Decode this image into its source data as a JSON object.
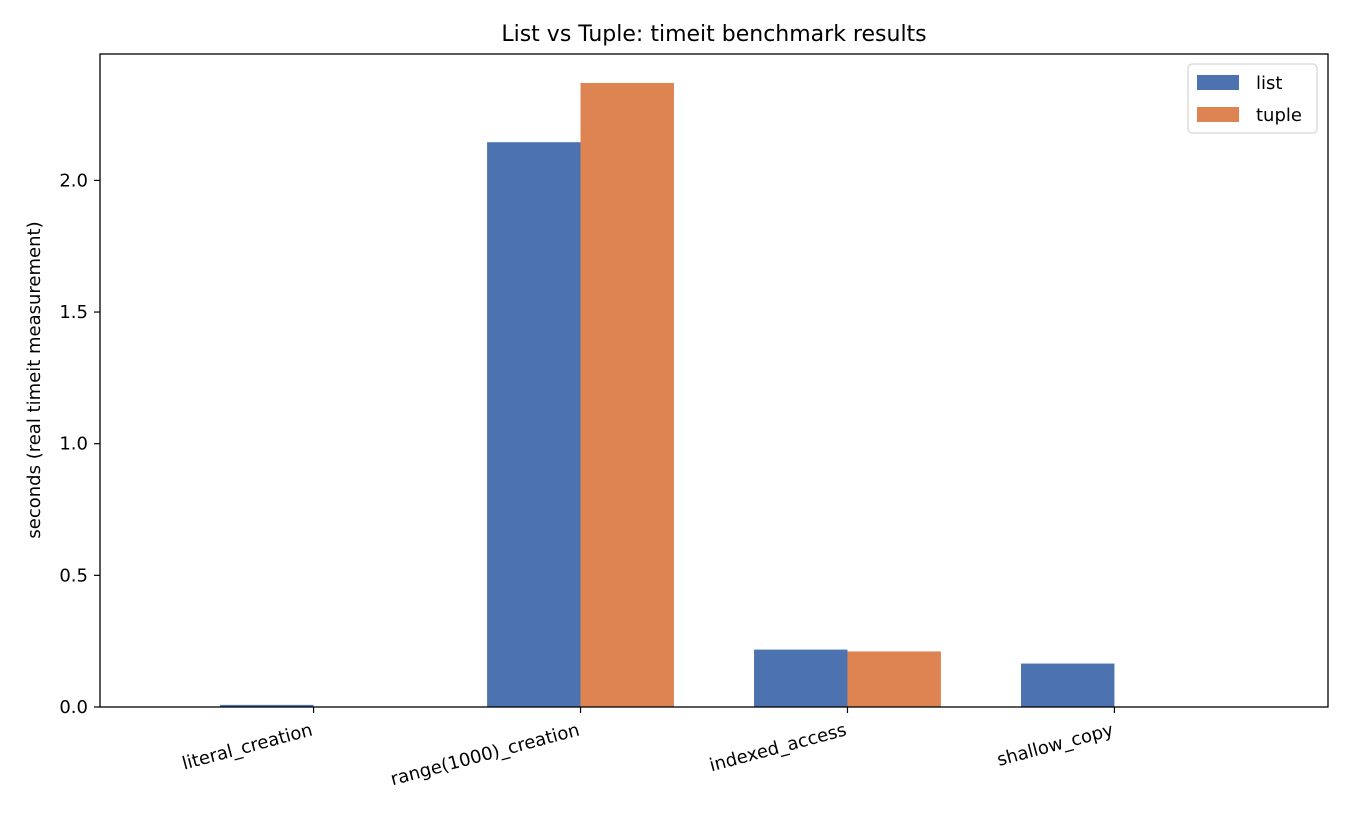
{
  "chart_data": {
    "type": "bar",
    "title": "List vs Tuple: timeit benchmark results",
    "xlabel": "",
    "ylabel": "seconds (real timeit measurement)",
    "categories": [
      "literal_creation",
      "range(1000)_creation",
      "indexed_access",
      "shallow_copy"
    ],
    "series": [
      {
        "name": "list",
        "color": "#4C72B0",
        "values": [
          0.008,
          2.145,
          0.218,
          0.165
        ]
      },
      {
        "name": "tuple",
        "color": "#DD8452",
        "values": [
          0.001,
          2.37,
          0.211,
          0.001
        ]
      }
    ],
    "ylim": [
      0,
      2.48
    ],
    "yticks": [
      0.0,
      0.5,
      1.0,
      1.5,
      2.0
    ],
    "ytick_labels": [
      "0.0",
      "0.5",
      "1.0",
      "1.5",
      "2.0"
    ],
    "grid": false,
    "legend_position": "top-right"
  }
}
